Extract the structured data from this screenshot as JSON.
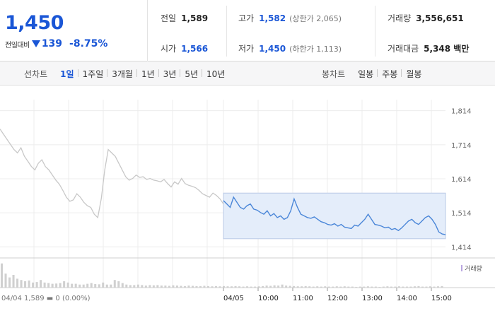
{
  "summary": {
    "price": "1,450",
    "change_label": "전일대비",
    "change_amount": "139",
    "change_pct": "-8.75%",
    "prev_close": {
      "label": "전일",
      "value": "1,589"
    },
    "open": {
      "label": "시가",
      "value": "1,566"
    },
    "high": {
      "label": "고가",
      "value": "1,582",
      "limit": "(상한가 2,065)"
    },
    "low": {
      "label": "저가",
      "value": "1,450",
      "limit": "(하한가 1,113)"
    },
    "volume": {
      "label": "거래량",
      "value": "3,556,651"
    },
    "trade_value": {
      "label": "거래대금",
      "value": "5,348 백만"
    }
  },
  "line_tabs": {
    "title": "선차트",
    "items": [
      "1일",
      "1주일",
      "3개월",
      "1년",
      "3년",
      "5년",
      "10년"
    ],
    "active": 0
  },
  "candle_tabs": {
    "title": "봉차트",
    "items": [
      "일봉",
      "주봉",
      "월봉"
    ]
  },
  "chart_data": {
    "type": "line",
    "ylim": [
      1394,
      1834
    ],
    "y_ticks": [
      "1,814",
      "1,714",
      "1,614",
      "1,514",
      "1,414"
    ],
    "y_tick_values": [
      1814,
      1714,
      1614,
      1514,
      1414
    ],
    "x_ticks": [
      "04/05",
      "10:00",
      "11:00",
      "12:00",
      "13:00",
      "14:00",
      "15:00"
    ],
    "prev_day_footnote": "04/04  1,589 ▬ 0 (0.00%)",
    "volume_legend": "거래량",
    "colors": {
      "prev": "#c8c8c8",
      "today": "#4a86d8",
      "fill": "#e4edfa",
      "volume": "#d0d0d0"
    },
    "series": [
      {
        "values": [
          1760,
          1745,
          1730,
          1715,
          1700,
          1690,
          1705,
          1680,
          1665,
          1650,
          1640,
          1660,
          1670,
          1650,
          1640,
          1625,
          1610,
          1598,
          1580,
          1560,
          1548,
          1552,
          1570,
          1560,
          1545,
          1535,
          1530,
          1510,
          1500,
          1555,
          1640,
          1700,
          1690,
          1680,
          1660,
          1640,
          1620,
          1610,
          1615,
          1625,
          1618,
          1620,
          1612,
          1615,
          1610,
          1608,
          1605,
          1612,
          1600,
          1590,
          1605,
          1598,
          1615,
          1600,
          1595,
          1592,
          1588,
          1580,
          1570,
          1565,
          1560,
          1572,
          1565,
          1555,
          1540
        ]
      },
      {
        "values": [
          1550,
          1540,
          1530,
          1560,
          1545,
          1530,
          1525,
          1535,
          1540,
          1525,
          1522,
          1515,
          1510,
          1520,
          1505,
          1512,
          1500,
          1505,
          1495,
          1500,
          1520,
          1555,
          1530,
          1510,
          1505,
          1500,
          1498,
          1502,
          1495,
          1488,
          1485,
          1480,
          1478,
          1482,
          1475,
          1480,
          1472,
          1470,
          1468,
          1478,
          1475,
          1485,
          1495,
          1510,
          1495,
          1480,
          1478,
          1475,
          1470,
          1472,
          1465,
          1468,
          1462,
          1470,
          1480,
          1490,
          1495,
          1485,
          1480,
          1490,
          1500,
          1505,
          1495,
          1480,
          1458,
          1452,
          1450
        ]
      }
    ],
    "volume": [
      0.95,
      0.55,
      0.4,
      0.5,
      0.35,
      0.3,
      0.25,
      0.28,
      0.2,
      0.22,
      0.3,
      0.2,
      0.18,
      0.15,
      0.16,
      0.18,
      0.25,
      0.2,
      0.15,
      0.15,
      0.12,
      0.12,
      0.15,
      0.18,
      0.14,
      0.13,
      0.2,
      0.12,
      0.12,
      0.3,
      0.25,
      0.18,
      0.12,
      0.1,
      0.1,
      0.12,
      0.1,
      0.08,
      0.1,
      0.09,
      0.1,
      0.08,
      0.08,
      0.07,
      0.09,
      0.08,
      0.07,
      0.06,
      0.08,
      0.07,
      0.06,
      0.06,
      0.07,
      0.06,
      0.05,
      0.06,
      0.05,
      0.06,
      0.05,
      0.05,
      0.06,
      0.05,
      0.04,
      0.05,
      0.04,
      0.04,
      0.05,
      0.06,
      0.08,
      0.07,
      0.09,
      0.08,
      0.12,
      0.08,
      0.07,
      0.06,
      0.05,
      0.05,
      0.06,
      0.05,
      0.04,
      0.05,
      0.04,
      0.05,
      0.04,
      0.04,
      0.05,
      0.04,
      0.05,
      0.04,
      0.04,
      0.03,
      0.04,
      0.04,
      0.05,
      0.04,
      0.04,
      0.03,
      0.04,
      0.05,
      0.04,
      0.04,
      0.05,
      0.04,
      0.04,
      0.04,
      0.05,
      0.06,
      0.04,
      0.04,
      0.05,
      0.04,
      0.05,
      0.06
    ]
  }
}
